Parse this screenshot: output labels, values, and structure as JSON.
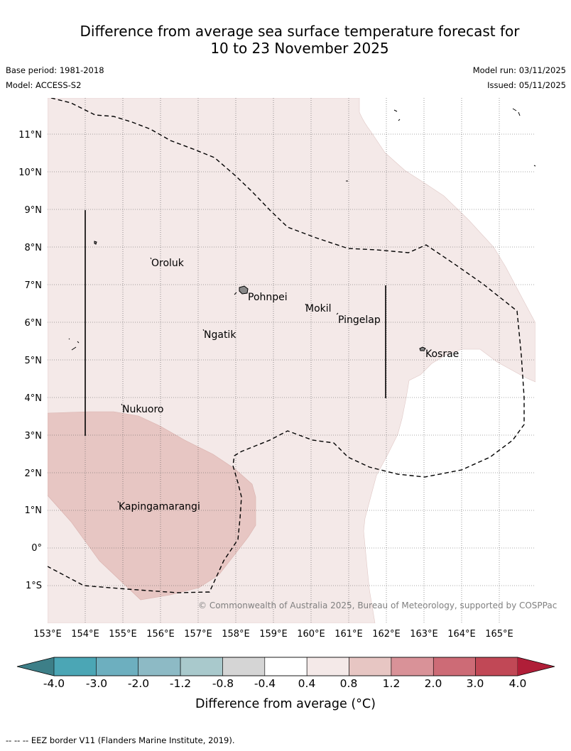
{
  "header": {
    "title_line1": "Difference from average sea surface temperature forecast for",
    "title_line2": "10 to 23 November 2025",
    "base_period": "Base period: 1981-2018",
    "model": "Model: ACCESS-S2",
    "model_run": "Model run: 03/11/2025",
    "issued": "Issued: 05/11/2025"
  },
  "map": {
    "lat_labels": [
      "11°N",
      "10°N",
      "9°N",
      "8°N",
      "7°N",
      "6°N",
      "5°N",
      "4°N",
      "3°N",
      "2°N",
      "1°N",
      "0°",
      "1°S"
    ],
    "lon_labels": [
      "153°E",
      "154°E",
      "155°E",
      "156°E",
      "157°E",
      "158°E",
      "159°E",
      "160°E",
      "161°E",
      "162°E",
      "163°E",
      "164°E",
      "165°E"
    ],
    "places": [
      {
        "name": "Oroluk"
      },
      {
        "name": "Pohnpei"
      },
      {
        "name": "Mokil"
      },
      {
        "name": "Pingelap"
      },
      {
        "name": "Ngatik"
      },
      {
        "name": "Kosrae"
      },
      {
        "name": "Nukuoro"
      },
      {
        "name": "Kapingamarangi"
      }
    ],
    "copyright": "© Commonwealth of Australia 2025, Bureau of Meteorology, supported by COSPPac",
    "colors": {
      "band_0_4_0_8": "#f4e9e8",
      "band_0_8_1_2": "#e7c6c3"
    }
  },
  "colorbar": {
    "ticks": [
      "-4.0",
      "-3.0",
      "-2.0",
      "-1.2",
      "-0.8",
      "-0.4",
      "0.4",
      "0.8",
      "1.2",
      "2.0",
      "3.0",
      "4.0"
    ],
    "colors": [
      "#3d7f88",
      "#4ba6b5",
      "#6dafbf",
      "#8dbac5",
      "#a9c9cc",
      "#d5d5d5",
      "#ffffff",
      "#f4e9e8",
      "#e7c6c3",
      "#d99298",
      "#cd6b76",
      "#c14856",
      "#b01e38"
    ],
    "title": "Difference from average (°C)"
  },
  "footnote": "--  --  -- EEZ border V11 (Flanders Marine Institute, 2019)."
}
